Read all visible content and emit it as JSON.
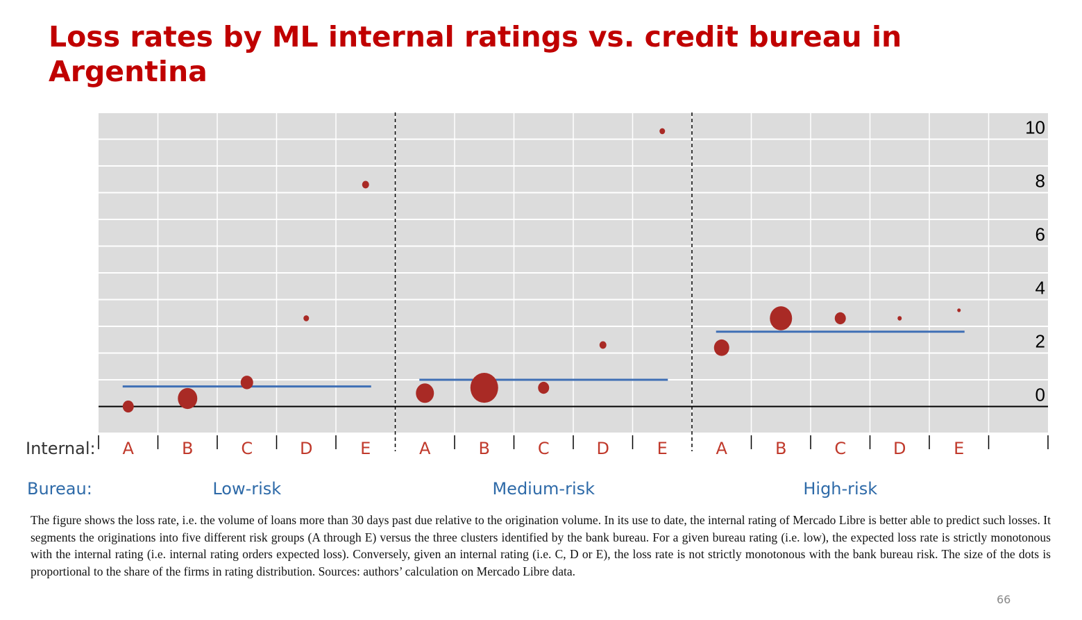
{
  "title": "Loss rates by ML internal ratings vs. credit bureau in Argentina",
  "chart_data": {
    "type": "scatter",
    "ylim": [
      -1,
      11
    ],
    "yticks": [
      0,
      2,
      4,
      6,
      8,
      10
    ],
    "grid": true,
    "internal_label": "Internal:",
    "bureau_label": "Bureau:",
    "groups": [
      {
        "name": "Low-risk",
        "ratings": [
          "A",
          "B",
          "C",
          "D",
          "E"
        ],
        "values": [
          0.0,
          0.3,
          0.9,
          3.3,
          8.3
        ],
        "sizes": [
          8,
          14,
          9,
          4,
          5
        ],
        "bureau_average": 0.75
      },
      {
        "name": "Medium-risk",
        "ratings": [
          "A",
          "B",
          "C",
          "D",
          "E"
        ],
        "values": [
          0.5,
          0.7,
          0.7,
          2.3,
          10.3
        ],
        "sizes": [
          13,
          20,
          8,
          5,
          4
        ],
        "bureau_average": 1.0
      },
      {
        "name": "High-risk",
        "ratings": [
          "A",
          "B",
          "C",
          "D",
          "E"
        ],
        "values": [
          2.2,
          3.3,
          3.3,
          3.3,
          3.6
        ],
        "sizes": [
          11,
          16,
          8,
          3,
          2.5
        ],
        "bureau_average": 2.8
      }
    ]
  },
  "note": "The figure shows the loss rate, i.e. the volume of loans more than 30 days past due relative to the origination volume. In its use to date, the internal rating of Mercado Libre is better able to predict such losses. It segments the originations into five different risk groups (A through E) versus the three clusters identified by the bank bureau. For a given bureau rating (i.e. low), the expected loss rate is strictly monotonous with the internal rating (i.e. internal rating orders expected loss). Conversely, given an internal rating (i.e. C, D or E), the loss rate is not strictly monotonous with the bank bureau risk. The size of the dots is proportional to the share of the firms in rating distribution. Sources: authors’ calculation on Mercado Libre data.",
  "page_number": "66"
}
